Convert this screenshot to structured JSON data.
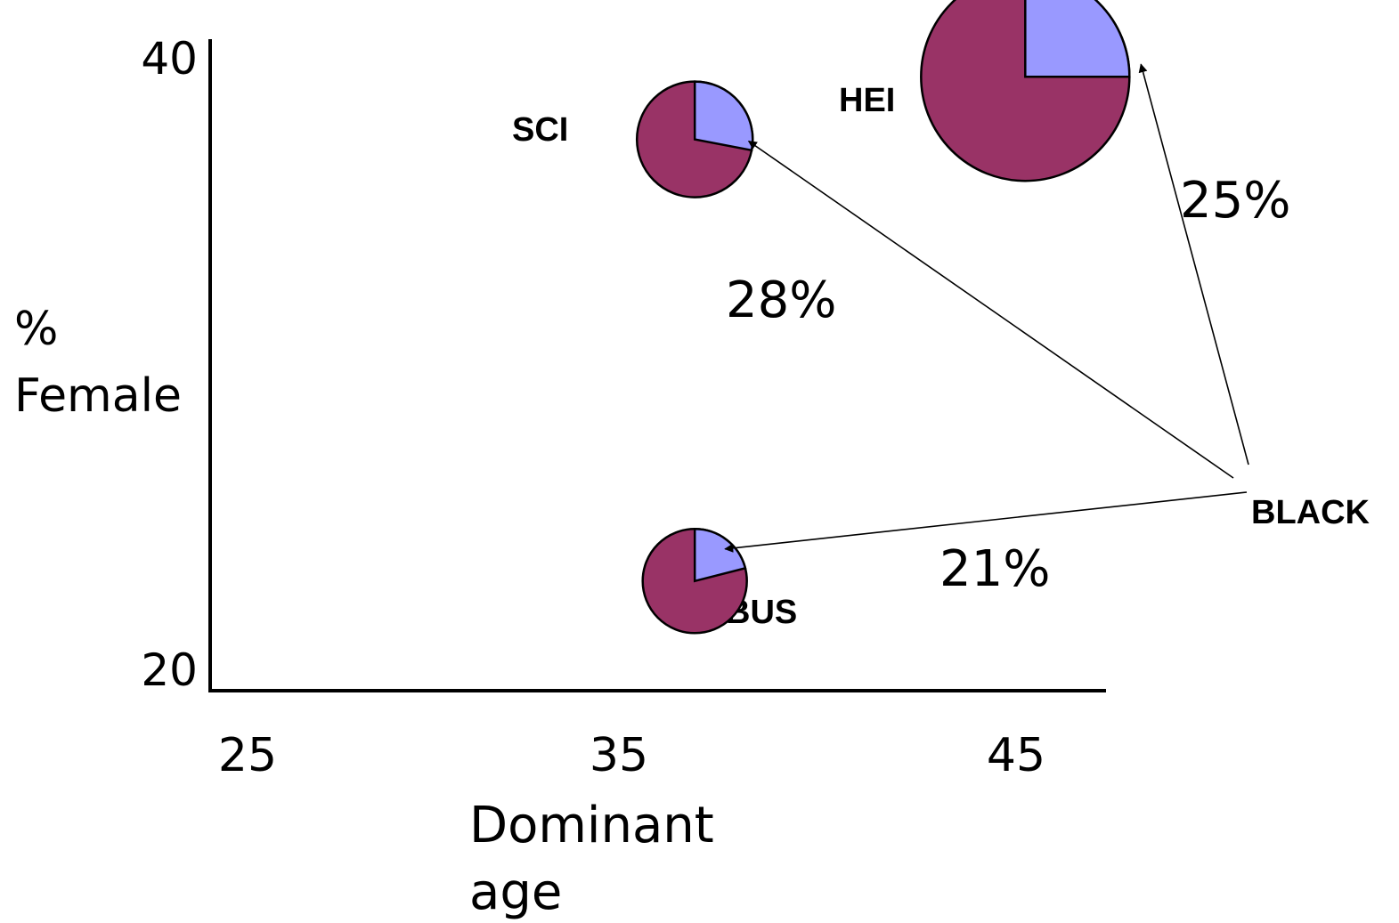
{
  "chart_data": {
    "type": "pie-bubble",
    "title": "",
    "xlabel_line1": "Dominant",
    "xlabel_line2": "age",
    "ylabel_line1": "%",
    "ylabel_line2": "Female",
    "x_ticks": [
      "25",
      "35",
      "45"
    ],
    "y_ticks": [
      "20",
      "40"
    ],
    "xlim": [
      22.8,
      47.2
    ],
    "ylim": [
      19.3,
      40.1
    ],
    "colors": {
      "slice": "#9999ff",
      "remainder": "#993366",
      "outline": "#000000"
    },
    "bubbles": [
      {
        "label": "SCI",
        "x": 36.0,
        "y": 36.9,
        "size": 1.0,
        "share": 0.28
      },
      {
        "label": "HEI",
        "x": 45.0,
        "y": 38.9,
        "size": 1.8,
        "share": 0.25
      },
      {
        "label": "BUS",
        "x": 36.0,
        "y": 22.8,
        "size": 0.9,
        "share": 0.21
      }
    ],
    "source": {
      "label": "BLACK"
    },
    "links": [
      {
        "to": "SCI",
        "value": "28%"
      },
      {
        "to": "HEI",
        "value": "25%"
      },
      {
        "to": "BUS",
        "value": "21%"
      }
    ]
  }
}
